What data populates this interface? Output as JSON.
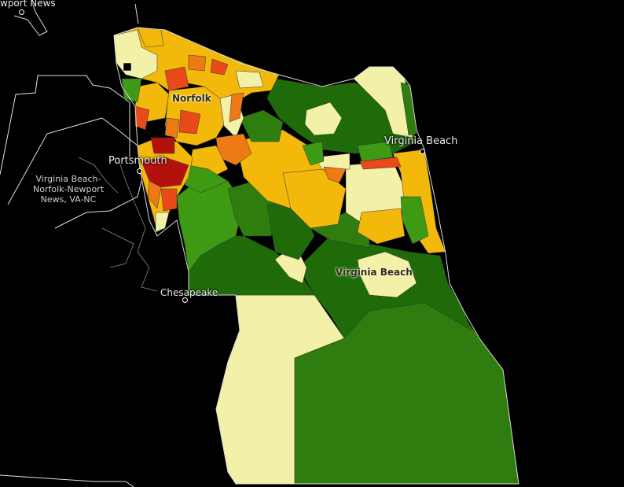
{
  "map": {
    "background": "#000000",
    "labels": {
      "newport_news": "wport News",
      "norfolk": "Norfolk",
      "portsmouth": "Portsmouth",
      "virginia_beach_city": "Virginia Beach",
      "virginia_beach_region": "Virginia Beach",
      "chesapeake": "Chesapeake",
      "metro_area": "Virginia Beach-Norfolk-Newport News, VA-NC"
    },
    "palette": {
      "dark_green": "#1f6b09",
      "forest_green": "#2e7d0e",
      "green": "#3e9a12",
      "light_yellow": "#f3f1a8",
      "gold": "#f2b90a",
      "orange": "#ee7a16",
      "red_orange": "#e84a1a",
      "dark_red": "#b3120c"
    }
  }
}
